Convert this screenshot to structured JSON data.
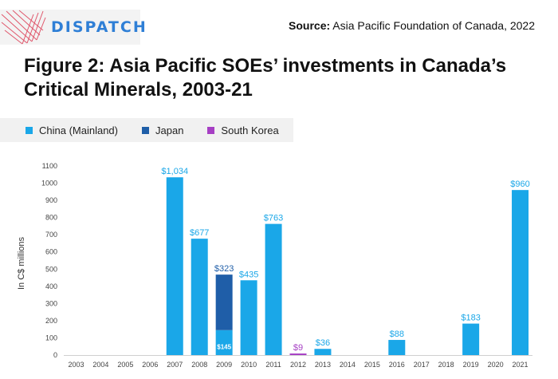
{
  "logo": {
    "text": "DISPATCH",
    "icon": "dispatch-line-logo-icon"
  },
  "source": {
    "label": "Source:",
    "text": "Asia Pacific Foundation of Canada, 2022"
  },
  "title": "Figure 2: Asia Pacific SOEs’ investments in Canada’s Critical Minerals, 2003-21",
  "colors": {
    "china": "#1aa7e8",
    "japan": "#1f5ea8",
    "korea": "#a63fc4",
    "logo": "#2f7fd6"
  },
  "chart_data": {
    "type": "bar",
    "stacked": true,
    "categories": [
      "2003",
      "2004",
      "2005",
      "2006",
      "2007",
      "2008",
      "2009",
      "2010",
      "2011",
      "2012",
      "2013",
      "2014",
      "2015",
      "2016",
      "2017",
      "2018",
      "2019",
      "2020",
      "2021"
    ],
    "series": [
      {
        "name": "China (Mainland)",
        "color": "#1aa7e8",
        "values": [
          0,
          0,
          0,
          0,
          1034,
          677,
          145,
          435,
          763,
          0,
          36,
          0,
          0,
          88,
          0,
          0,
          183,
          0,
          960
        ]
      },
      {
        "name": "Japan",
        "color": "#1f5ea8",
        "values": [
          0,
          0,
          0,
          0,
          0,
          0,
          323,
          0,
          0,
          0,
          0,
          0,
          0,
          0,
          0,
          0,
          0,
          0,
          0
        ]
      },
      {
        "name": "South Korea",
        "color": "#a63fc4",
        "values": [
          0,
          0,
          0,
          0,
          0,
          0,
          0,
          0,
          0,
          9,
          0,
          0,
          0,
          0,
          0,
          0,
          0,
          0,
          0
        ]
      }
    ],
    "data_labels": [
      {
        "category": "2007",
        "text": "$1,034",
        "series": "China (Mainland)"
      },
      {
        "category": "2008",
        "text": "$677",
        "series": "China (Mainland)"
      },
      {
        "category": "2009",
        "text": "$323",
        "series": "Japan"
      },
      {
        "category": "2009",
        "text": "$145",
        "series": "China (Mainland)",
        "inside": true
      },
      {
        "category": "2010",
        "text": "$435",
        "series": "China (Mainland)"
      },
      {
        "category": "2011",
        "text": "$763",
        "series": "China (Mainland)"
      },
      {
        "category": "2012",
        "text": "$9",
        "series": "South Korea"
      },
      {
        "category": "2013",
        "text": "$36",
        "series": "China (Mainland)"
      },
      {
        "category": "2016",
        "text": "$88",
        "series": "China (Mainland)"
      },
      {
        "category": "2019",
        "text": "$183",
        "series": "China (Mainland)"
      },
      {
        "category": "2021",
        "text": "$960",
        "series": "China (Mainland)"
      }
    ],
    "ylabel": "In C$ millions",
    "ylim": [
      0,
      1100
    ],
    "yticks": [
      0,
      100,
      200,
      300,
      400,
      500,
      600,
      700,
      800,
      900,
      1000,
      1100
    ],
    "grid": false,
    "legend_position": "top-left"
  }
}
